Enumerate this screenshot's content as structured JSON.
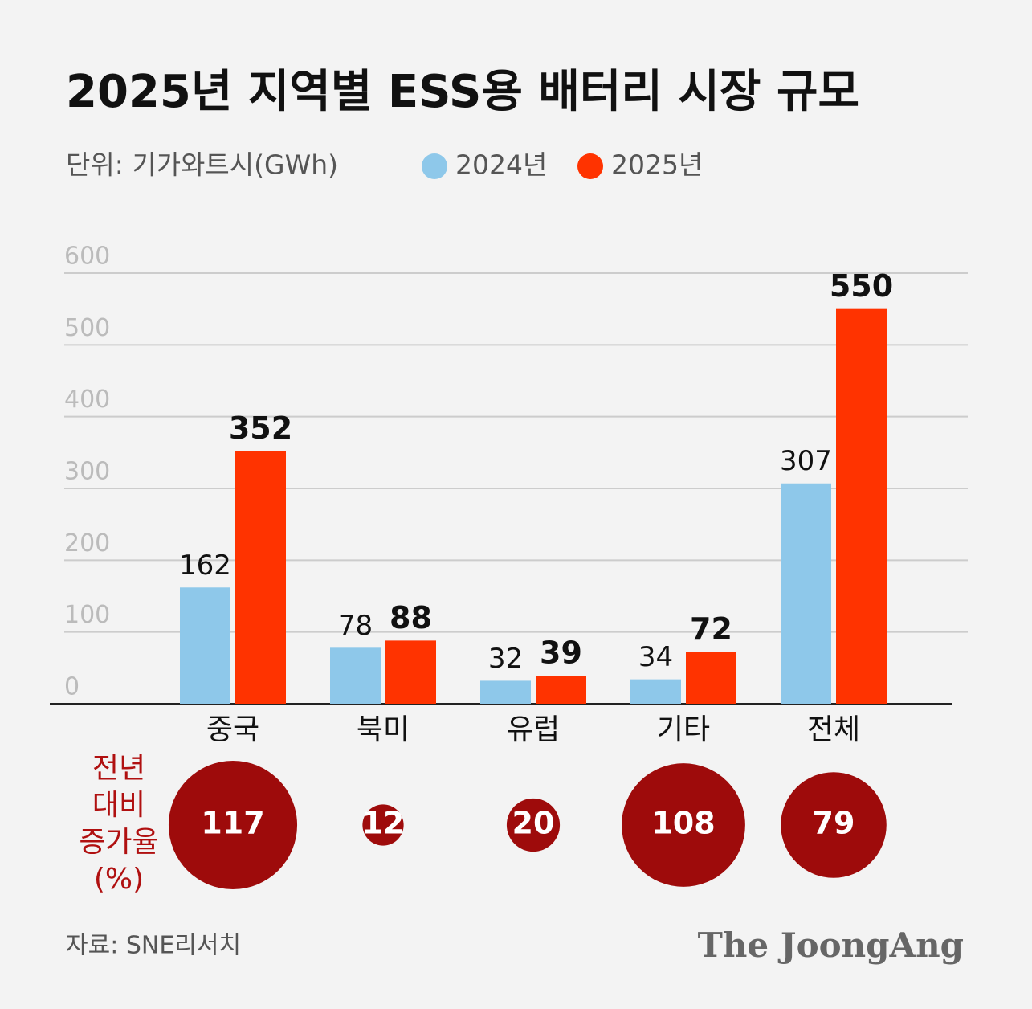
{
  "chart_data": {
    "type": "bar",
    "title": "2025년 지역별 ESS용 배터리 시장 규모",
    "unit": "단위: 기가와트시(GWh)",
    "categories": [
      "중국",
      "북미",
      "유럽",
      "기타",
      "전체"
    ],
    "series": [
      {
        "name": "2024년",
        "color": "#8ec8ea",
        "values": [
          162,
          78,
          32,
          34,
          307
        ]
      },
      {
        "name": "2025년",
        "color": "#ff3300",
        "values": [
          352,
          88,
          39,
          72,
          550
        ]
      }
    ],
    "ylim": [
      0,
      600
    ],
    "yticks": [
      0,
      100,
      200,
      300,
      400,
      500,
      600
    ],
    "grid": true,
    "growth": {
      "label_lines": [
        "전년",
        "대비",
        "증가율",
        "(%)"
      ],
      "color": "#9e0b0b",
      "values": [
        117,
        12,
        20,
        108,
        79
      ]
    },
    "source": "자료: SNE리서치",
    "brand": "The JoongAng"
  }
}
